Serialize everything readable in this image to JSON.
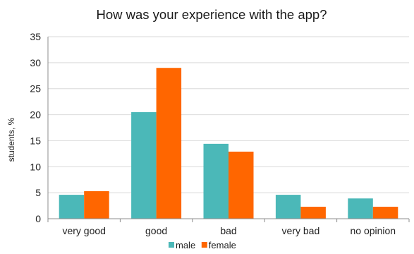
{
  "chart_data": {
    "type": "bar",
    "title": "How was your experience with the app?",
    "xlabel": "",
    "ylabel": "students, %",
    "categories": [
      "very good",
      "good",
      "bad",
      "very bad",
      "no opinion"
    ],
    "series": [
      {
        "name": "male",
        "color": "#4BB8B8",
        "values": [
          4.6,
          20.5,
          14.4,
          4.6,
          3.9
        ]
      },
      {
        "name": "female",
        "color": "#FF6600",
        "values": [
          5.3,
          29.0,
          12.9,
          2.3,
          2.3
        ]
      }
    ],
    "yticks": [
      "0",
      "5",
      "10",
      "15",
      "20",
      "25",
      "30",
      "35"
    ],
    "ylim": [
      0,
      35
    ],
    "grid": true,
    "legend": "bottom"
  }
}
